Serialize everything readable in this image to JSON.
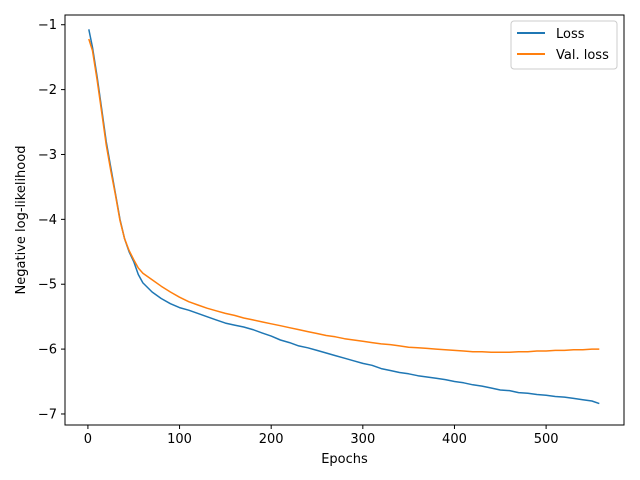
{
  "chart_data": {
    "type": "line",
    "xlabel": "Epochs",
    "ylabel": "Negative log-likelihood",
    "xlim": [
      -25,
      585
    ],
    "ylim": [
      -7.17,
      -0.85
    ],
    "xticks": [
      0,
      100,
      200,
      300,
      400,
      500
    ],
    "yticks": [
      -1,
      -2,
      -3,
      -4,
      -5,
      -6,
      -7
    ],
    "grid": false,
    "legend_position": "top-right",
    "series": [
      {
        "name": "Loss",
        "color": "#1f77b4",
        "x": [
          1,
          5,
          10,
          15,
          20,
          25,
          30,
          35,
          40,
          45,
          50,
          55,
          60,
          70,
          80,
          90,
          100,
          110,
          120,
          130,
          140,
          150,
          160,
          170,
          180,
          190,
          200,
          210,
          220,
          230,
          240,
          250,
          260,
          270,
          280,
          290,
          300,
          310,
          320,
          330,
          340,
          350,
          360,
          370,
          380,
          390,
          400,
          410,
          420,
          430,
          440,
          450,
          460,
          470,
          480,
          490,
          500,
          510,
          520,
          530,
          540,
          550,
          558
        ],
        "y": [
          -1.07,
          -1.35,
          -1.8,
          -2.3,
          -2.8,
          -3.2,
          -3.6,
          -4.0,
          -4.3,
          -4.5,
          -4.65,
          -4.85,
          -4.98,
          -5.12,
          -5.22,
          -5.3,
          -5.36,
          -5.4,
          -5.45,
          -5.5,
          -5.55,
          -5.6,
          -5.63,
          -5.66,
          -5.7,
          -5.75,
          -5.8,
          -5.86,
          -5.9,
          -5.95,
          -5.98,
          -6.02,
          -6.06,
          -6.1,
          -6.14,
          -6.18,
          -6.22,
          -6.25,
          -6.3,
          -6.33,
          -6.36,
          -6.38,
          -6.41,
          -6.43,
          -6.45,
          -6.47,
          -6.5,
          -6.52,
          -6.55,
          -6.57,
          -6.6,
          -6.63,
          -6.64,
          -6.67,
          -6.68,
          -6.7,
          -6.71,
          -6.73,
          -6.74,
          -6.76,
          -6.78,
          -6.8,
          -6.84
        ]
      },
      {
        "name": "Val. loss",
        "color": "#ff7f0e",
        "x": [
          1,
          5,
          10,
          15,
          20,
          25,
          30,
          35,
          40,
          45,
          50,
          55,
          60,
          70,
          80,
          90,
          100,
          110,
          120,
          130,
          140,
          150,
          160,
          170,
          180,
          190,
          200,
          210,
          220,
          230,
          240,
          250,
          260,
          270,
          280,
          290,
          300,
          310,
          320,
          330,
          340,
          350,
          360,
          370,
          380,
          390,
          400,
          410,
          420,
          430,
          440,
          450,
          460,
          470,
          480,
          490,
          500,
          510,
          520,
          530,
          540,
          550,
          558
        ],
        "y": [
          -1.22,
          -1.4,
          -1.85,
          -2.35,
          -2.85,
          -3.25,
          -3.62,
          -4.02,
          -4.3,
          -4.48,
          -4.62,
          -4.75,
          -4.83,
          -4.93,
          -5.03,
          -5.12,
          -5.2,
          -5.27,
          -5.32,
          -5.37,
          -5.41,
          -5.45,
          -5.48,
          -5.52,
          -5.55,
          -5.58,
          -5.61,
          -5.64,
          -5.67,
          -5.7,
          -5.73,
          -5.76,
          -5.79,
          -5.81,
          -5.84,
          -5.86,
          -5.88,
          -5.9,
          -5.92,
          -5.93,
          -5.95,
          -5.97,
          -5.98,
          -5.99,
          -6.0,
          -6.01,
          -6.02,
          -6.03,
          -6.04,
          -6.04,
          -6.05,
          -6.05,
          -6.05,
          -6.04,
          -6.04,
          -6.03,
          -6.03,
          -6.02,
          -6.02,
          -6.01,
          -6.01,
          -6.0,
          -6.0
        ]
      }
    ]
  }
}
